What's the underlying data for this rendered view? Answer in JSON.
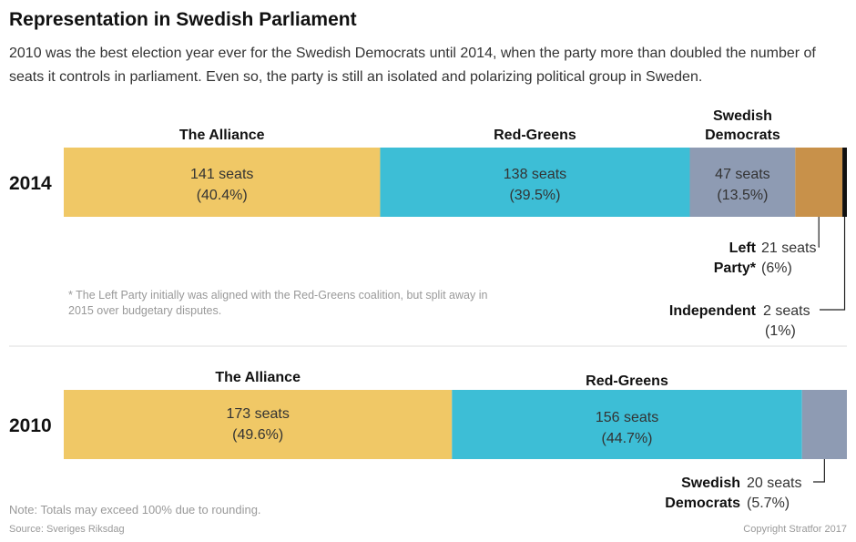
{
  "header": {
    "title": "Representation in Swedish Parliament",
    "subtitle": "2010 was the best election year ever for the Swedish Democrats until 2014, when the party more than doubled the number of seats it controls in parliament. Even so, the party is still an isolated and polarizing political group in Sweden."
  },
  "footnote": "* The Left Party initially was aligned with the Red-Greens coalition, but split away in 2015 over budgetary disputes.",
  "note": "Note: Totals may exceed 100% due to rounding.",
  "source": "Source: Sveriges Riksdag",
  "copyright": "Copyright Stratfor 2017",
  "colors": {
    "alliance": "#f0c866",
    "red_greens": "#3dbed6",
    "swedish_democrats": "#8e9bb3",
    "left_party": "#c8914a",
    "independent": "#111111"
  },
  "chart_data": [
    {
      "type": "bar",
      "orientation": "horizontal-stacked",
      "category": "2014",
      "segments": [
        {
          "name": "The Alliance",
          "seats": 141,
          "percent": 40.4,
          "seats_label": "141 seats",
          "percent_label": "(40.4%)"
        },
        {
          "name": "Red-Greens",
          "seats": 138,
          "percent": 39.5,
          "seats_label": "138 seats",
          "percent_label": "(39.5%)"
        },
        {
          "name_lines": [
            "Swedish",
            "Democrats"
          ],
          "seats": 47,
          "percent": 13.5,
          "seats_label": "47 seats",
          "percent_label": "(13.5%)"
        },
        {
          "name_lines": [
            "Left",
            "Party*"
          ],
          "seats": 21,
          "percent": 6,
          "seats_label": "21 seats",
          "percent_label": "(6%)"
        },
        {
          "name": "Independent",
          "seats": 2,
          "percent": 1,
          "seats_label": "2 seats",
          "percent_label": "(1%)"
        }
      ]
    },
    {
      "type": "bar",
      "orientation": "horizontal-stacked",
      "category": "2010",
      "segments": [
        {
          "name": "The Alliance",
          "seats": 173,
          "percent": 49.6,
          "seats_label": "173 seats",
          "percent_label": "(49.6%)"
        },
        {
          "name": "Red-Greens",
          "seats": 156,
          "percent": 44.7,
          "seats_label": "156 seats",
          "percent_label": "(44.7%)"
        },
        {
          "name_lines": [
            "Swedish",
            "Democrats"
          ],
          "seats": 20,
          "percent": 5.7,
          "seats_label": "20 seats",
          "percent_label": "(5.7%)"
        }
      ]
    }
  ]
}
